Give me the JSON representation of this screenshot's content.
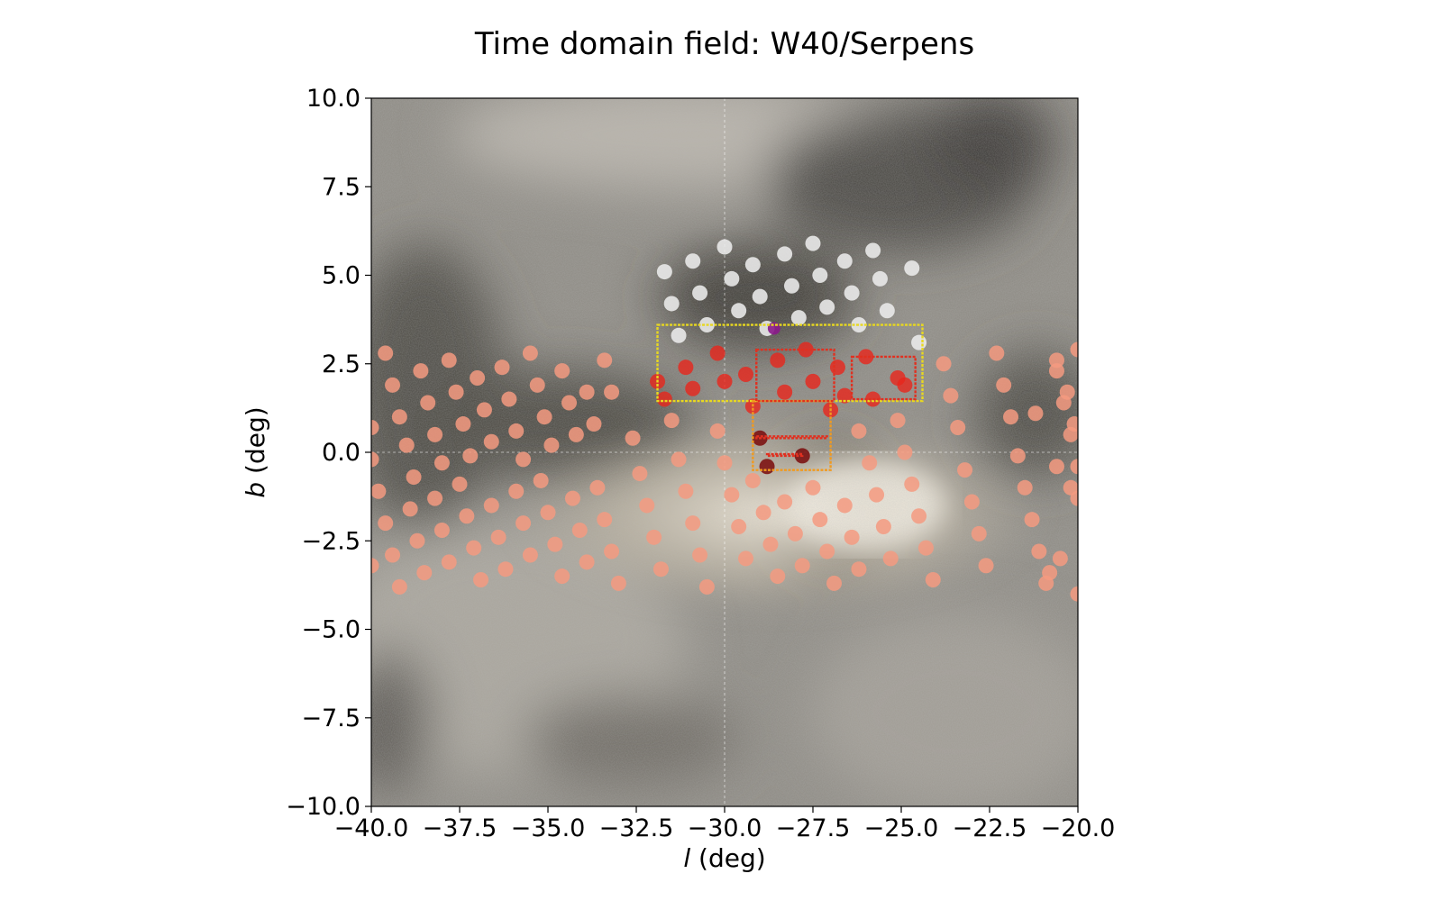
{
  "chart_data": {
    "type": "scatter",
    "title": "Time domain field: W40/Serpens",
    "xlabel_italic": "l",
    "xlabel_unit": " (deg)",
    "ylabel_italic": "b",
    "ylabel_unit": " (deg)",
    "xlim": [
      -40,
      -20
    ],
    "ylim": [
      -10,
      10
    ],
    "xticks": [
      {
        "value": -40,
        "label": "−40.0"
      },
      {
        "value": -37.5,
        "label": "−37.5"
      },
      {
        "value": -35,
        "label": "−35.0"
      },
      {
        "value": -32.5,
        "label": "−32.5"
      },
      {
        "value": -30,
        "label": "−30.0"
      },
      {
        "value": -27.5,
        "label": "−27.5"
      },
      {
        "value": -25,
        "label": "−25.0"
      },
      {
        "value": -22.5,
        "label": "−22.5"
      },
      {
        "value": -20,
        "label": "−20.0"
      }
    ],
    "yticks": [
      {
        "value": 10,
        "label": "10.0"
      },
      {
        "value": 7.5,
        "label": "7.5"
      },
      {
        "value": 5,
        "label": "5.0"
      },
      {
        "value": 2.5,
        "label": "2.5"
      },
      {
        "value": 0,
        "label": "0.0"
      },
      {
        "value": -2.5,
        "label": "−2.5"
      },
      {
        "value": -5,
        "label": "−5.0"
      },
      {
        "value": -7.5,
        "label": "−7.5"
      },
      {
        "value": -10,
        "label": "−10.0"
      }
    ],
    "grid": "dashed at l=-30 and b=0",
    "background": "Galactic dust extinction map (grayscale with dark clouds and bright bulge glow)",
    "colors": {
      "salmon": "#f49a80",
      "red": "#e8261c",
      "white": "#ececec",
      "darkred": "#7a0a0a",
      "purple": "#8a1a8a",
      "yellow": "#e8d820",
      "orange": "#f09a20",
      "redline": "#e03020"
    },
    "series": [
      {
        "color": "white",
        "points": [
          [
            -31.7,
            5.1
          ],
          [
            -30.9,
            5.4
          ],
          [
            -30.0,
            5.8
          ],
          [
            -29.2,
            5.3
          ],
          [
            -28.3,
            5.6
          ],
          [
            -27.5,
            5.9
          ],
          [
            -26.6,
            5.4
          ],
          [
            -25.8,
            5.7
          ],
          [
            -31.5,
            4.2
          ],
          [
            -30.7,
            4.5
          ],
          [
            -29.8,
            4.9
          ],
          [
            -29.0,
            4.4
          ],
          [
            -28.1,
            4.7
          ],
          [
            -27.3,
            5.0
          ],
          [
            -26.4,
            4.5
          ],
          [
            -25.6,
            4.9
          ],
          [
            -24.7,
            5.2
          ],
          [
            -31.3,
            3.3
          ],
          [
            -30.5,
            3.6
          ],
          [
            -29.6,
            4.0
          ],
          [
            -28.8,
            3.5
          ],
          [
            -27.9,
            3.8
          ],
          [
            -27.1,
            4.1
          ],
          [
            -26.2,
            3.6
          ],
          [
            -25.4,
            4.0
          ],
          [
            -24.5,
            3.1
          ]
        ]
      },
      {
        "color": "purple",
        "points": [
          [
            -28.6,
            3.5
          ]
        ]
      },
      {
        "color": "red",
        "points": [
          [
            -31.9,
            2.0
          ],
          [
            -31.1,
            2.4
          ],
          [
            -30.2,
            2.8
          ],
          [
            -29.4,
            2.2
          ],
          [
            -28.5,
            2.6
          ],
          [
            -27.7,
            2.9
          ],
          [
            -26.8,
            2.4
          ],
          [
            -26.0,
            2.7
          ],
          [
            -25.1,
            2.1
          ],
          [
            -31.7,
            1.5
          ],
          [
            -30.9,
            1.8
          ],
          [
            -30.0,
            2.0
          ],
          [
            -29.2,
            1.3
          ],
          [
            -28.3,
            1.7
          ],
          [
            -27.5,
            2.0
          ],
          [
            -26.6,
            1.6
          ],
          [
            -25.8,
            1.5
          ],
          [
            -24.9,
            1.9
          ],
          [
            -27.0,
            1.2
          ]
        ]
      },
      {
        "color": "darkred",
        "points": [
          [
            -29.0,
            0.4
          ],
          [
            -28.8,
            -0.4
          ],
          [
            -27.8,
            -0.1
          ]
        ]
      },
      {
        "color": "salmon",
        "points": [
          [
            -40.0,
            0.7
          ],
          [
            -39.6,
            2.8
          ],
          [
            -39.4,
            1.9
          ],
          [
            -39.2,
            1.0
          ],
          [
            -39.0,
            0.2
          ],
          [
            -38.8,
            -0.7
          ],
          [
            -38.6,
            2.3
          ],
          [
            -38.4,
            1.4
          ],
          [
            -38.2,
            0.5
          ],
          [
            -38.0,
            -0.3
          ],
          [
            -37.8,
            2.6
          ],
          [
            -37.6,
            1.7
          ],
          [
            -37.4,
            0.8
          ],
          [
            -37.2,
            -0.1
          ],
          [
            -37.0,
            2.1
          ],
          [
            -36.8,
            1.2
          ],
          [
            -36.6,
            0.3
          ],
          [
            -36.3,
            2.4
          ],
          [
            -36.1,
            1.5
          ],
          [
            -35.9,
            0.6
          ],
          [
            -35.7,
            -0.2
          ],
          [
            -35.5,
            2.8
          ],
          [
            -35.3,
            1.9
          ],
          [
            -35.1,
            1.0
          ],
          [
            -34.9,
            0.2
          ],
          [
            -34.6,
            2.3
          ],
          [
            -34.4,
            1.4
          ],
          [
            -34.2,
            0.5
          ],
          [
            -33.9,
            1.7
          ],
          [
            -33.7,
            0.8
          ],
          [
            -33.4,
            2.6
          ],
          [
            -33.2,
            1.7
          ],
          [
            -40.0,
            -0.2
          ],
          [
            -39.8,
            -1.1
          ],
          [
            -39.6,
            -2.0
          ],
          [
            -39.4,
            -2.9
          ],
          [
            -39.2,
            -3.8
          ],
          [
            -38.9,
            -1.6
          ],
          [
            -38.7,
            -2.5
          ],
          [
            -38.5,
            -3.4
          ],
          [
            -38.2,
            -1.3
          ],
          [
            -38.0,
            -2.2
          ],
          [
            -37.8,
            -3.1
          ],
          [
            -37.5,
            -0.9
          ],
          [
            -37.3,
            -1.8
          ],
          [
            -37.1,
            -2.7
          ],
          [
            -36.9,
            -3.6
          ],
          [
            -36.6,
            -1.5
          ],
          [
            -36.4,
            -2.4
          ],
          [
            -36.2,
            -3.3
          ],
          [
            -35.9,
            -1.1
          ],
          [
            -35.7,
            -2.0
          ],
          [
            -35.5,
            -2.9
          ],
          [
            -35.2,
            -0.8
          ],
          [
            -35.0,
            -1.7
          ],
          [
            -34.8,
            -2.6
          ],
          [
            -34.6,
            -3.5
          ],
          [
            -34.3,
            -1.3
          ],
          [
            -34.1,
            -2.2
          ],
          [
            -33.9,
            -3.1
          ],
          [
            -33.6,
            -1.0
          ],
          [
            -33.4,
            -1.9
          ],
          [
            -33.2,
            -2.8
          ],
          [
            -33.0,
            -3.7
          ],
          [
            -40.0,
            -3.2
          ],
          [
            -32.6,
            0.4
          ],
          [
            -32.4,
            -0.6
          ],
          [
            -32.2,
            -1.5
          ],
          [
            -32.0,
            -2.4
          ],
          [
            -31.8,
            -3.3
          ],
          [
            -31.5,
            0.9
          ],
          [
            -31.3,
            -0.2
          ],
          [
            -31.1,
            -1.1
          ],
          [
            -30.9,
            -2.0
          ],
          [
            -30.7,
            -2.9
          ],
          [
            -30.5,
            -3.8
          ],
          [
            -30.2,
            0.6
          ],
          [
            -30.0,
            -0.3
          ],
          [
            -29.8,
            -1.2
          ],
          [
            -29.6,
            -2.1
          ],
          [
            -29.4,
            -3.0
          ],
          [
            -29.2,
            -0.8
          ],
          [
            -28.9,
            -1.7
          ],
          [
            -28.7,
            -2.6
          ],
          [
            -28.5,
            -3.5
          ],
          [
            -28.3,
            -1.4
          ],
          [
            -28.0,
            -2.3
          ],
          [
            -27.8,
            -3.2
          ],
          [
            -27.5,
            -1.0
          ],
          [
            -27.3,
            -1.9
          ],
          [
            -27.1,
            -2.8
          ],
          [
            -26.9,
            -3.7
          ],
          [
            -26.6,
            -1.5
          ],
          [
            -26.4,
            -2.4
          ],
          [
            -26.2,
            -3.3
          ],
          [
            -26.2,
            0.6
          ],
          [
            -25.9,
            -0.3
          ],
          [
            -25.7,
            -1.2
          ],
          [
            -25.5,
            -2.1
          ],
          [
            -25.3,
            -3.0
          ],
          [
            -25.1,
            0.9
          ],
          [
            -24.9,
            -0.0
          ],
          [
            -24.7,
            -0.9
          ],
          [
            -24.5,
            -1.8
          ],
          [
            -24.3,
            -2.7
          ],
          [
            -24.1,
            -3.6
          ],
          [
            -23.8,
            2.5
          ],
          [
            -23.6,
            1.6
          ],
          [
            -23.4,
            0.7
          ],
          [
            -23.2,
            -0.5
          ],
          [
            -23.0,
            -1.4
          ],
          [
            -22.8,
            -2.3
          ],
          [
            -22.6,
            -3.2
          ],
          [
            -22.3,
            2.8
          ],
          [
            -22.1,
            1.9
          ],
          [
            -21.9,
            1.0
          ],
          [
            -21.7,
            -0.1
          ],
          [
            -21.5,
            -1.0
          ],
          [
            -21.3,
            -1.9
          ],
          [
            -21.1,
            -2.8
          ],
          [
            -20.9,
            -3.7
          ],
          [
            -20.6,
            2.3
          ],
          [
            -20.4,
            1.4
          ],
          [
            -20.2,
            0.5
          ],
          [
            -20.0,
            -0.4
          ],
          [
            -20.0,
            -1.3
          ],
          [
            -19.8,
            -2.2
          ],
          [
            -20.6,
            -0.4
          ],
          [
            -20.8,
            -3.4
          ],
          [
            -20.5,
            -3.0
          ],
          [
            -20.1,
            0.8
          ],
          [
            -20.0,
            2.9
          ],
          [
            -20.2,
            -1.0
          ],
          [
            -20.0,
            -4.0
          ],
          [
            -20.3,
            1.7
          ],
          [
            -21.2,
            1.1
          ],
          [
            -20.6,
            2.6
          ]
        ]
      }
    ],
    "rectangles": [
      {
        "color": "yellow",
        "l": [
          -31.9,
          -24.4
        ],
        "b": [
          1.45,
          3.6
        ]
      },
      {
        "color": "orange",
        "l": [
          -29.2,
          -27.0
        ],
        "b": [
          -0.5,
          1.45
        ]
      },
      {
        "color": "redline",
        "l": [
          -29.1,
          -26.9
        ],
        "b": [
          1.45,
          2.9
        ]
      },
      {
        "color": "redline",
        "l": [
          -26.4,
          -24.6
        ],
        "b": [
          1.5,
          2.7
        ]
      },
      {
        "color": "redline",
        "l": [
          -29.1,
          -27.1
        ],
        "b": [
          0.4,
          0.45
        ]
      },
      {
        "color": "redline",
        "l": [
          -28.8,
          -27.8
        ],
        "b": [
          -0.1,
          -0.05
        ]
      }
    ]
  }
}
